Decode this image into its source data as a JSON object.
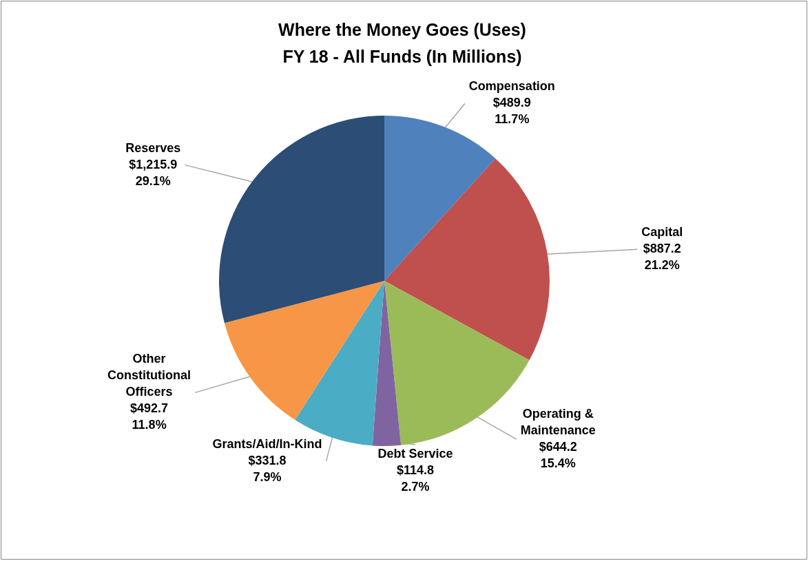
{
  "chart_data": {
    "type": "pie",
    "title": "Where the Money Goes (Uses)",
    "subtitle": "FY 18 - All Funds (In Millions)",
    "categories": [
      "Compensation",
      "Capital",
      "Operating & Maintenance",
      "Debt Service",
      "Grants/Aid/In-Kind",
      "Other Constitutional Officers",
      "Reserves"
    ],
    "values": [
      489.9,
      887.2,
      644.2,
      114.8,
      331.8,
      492.7,
      1215.9
    ],
    "colors": [
      "#4f81bd",
      "#c0504d",
      "#9bbb59",
      "#8064a2",
      "#4bacc6",
      "#f79646",
      "#2c4d75"
    ],
    "value_labels": [
      "$489.9\n11.7%",
      "$887.2\n21.2%",
      "$644.2\n15.4%",
      "$114.8\n2.7%",
      "$331.8\n7.9%",
      "$492.7\n11.8%",
      "$1,215.9\n29.1%"
    ],
    "legend": false
  }
}
